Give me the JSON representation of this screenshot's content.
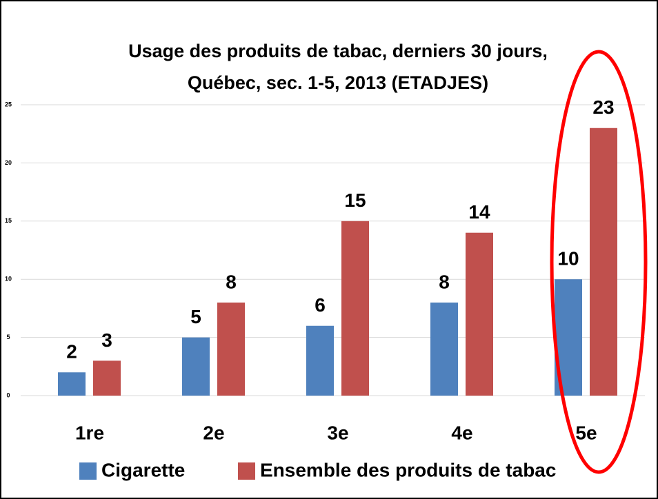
{
  "chart_data": {
    "type": "bar",
    "title": [
      "Usage des produits de tabac, derniers 30 jours,",
      "Québec, sec. 1-5, 2013 (ETADJES)"
    ],
    "categories": [
      "1re",
      "2e",
      "3e",
      "4e",
      "5e"
    ],
    "series": [
      {
        "name": "Cigarette",
        "color": "#4f81bd",
        "values": [
          2,
          5,
          6,
          8,
          10
        ]
      },
      {
        "name": "Ensemble des produits de tabac",
        "color": "#c0504d",
        "values": [
          3,
          8,
          15,
          14,
          23
        ]
      }
    ],
    "ylim": [
      0,
      25
    ],
    "yticks": [
      0,
      5,
      10,
      15,
      20,
      25
    ],
    "grid": true,
    "legend": "bottom"
  }
}
